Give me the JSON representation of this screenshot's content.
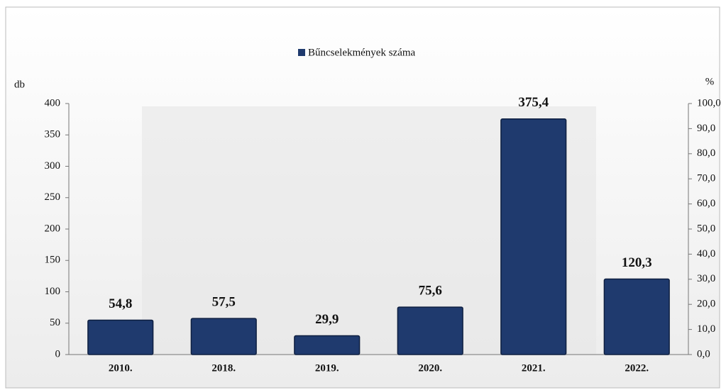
{
  "chart_data": {
    "type": "bar",
    "categories": [
      "2010.",
      "2018.",
      "2019.",
      "2020.",
      "2021.",
      "2022."
    ],
    "series": [
      {
        "name": "Bűncselekmények száma",
        "color": "#1f3a6e",
        "values": [
          54.8,
          57.5,
          29.9,
          75.6,
          375.4,
          120.3
        ],
        "value_labels": [
          "54,8",
          "57,5",
          "29,9",
          "75,6",
          "375,4",
          "120,3"
        ]
      }
    ],
    "ylabel": "db",
    "y2label": "%",
    "ylim": [
      0,
      400
    ],
    "yticks": [
      0,
      50,
      100,
      150,
      200,
      250,
      300,
      350,
      400
    ],
    "y2lim": [
      0,
      100
    ],
    "y2ticks": [
      {
        "value": 0,
        "label": "0,0"
      },
      {
        "value": 10,
        "label": "10,0"
      },
      {
        "value": 20,
        "label": "20,0"
      },
      {
        "value": 30,
        "label": "30,0"
      },
      {
        "value": 40,
        "label": "40,0"
      },
      {
        "value": 50,
        "label": "50,0"
      },
      {
        "value": 60,
        "label": "60,0"
      },
      {
        "value": 70,
        "label": "70,0"
      },
      {
        "value": 80,
        "label": "80,0"
      },
      {
        "value": 90,
        "label": "90,0"
      },
      {
        "value": 100,
        "label": "100,0"
      }
    ],
    "legend": "top",
    "grid": false
  }
}
